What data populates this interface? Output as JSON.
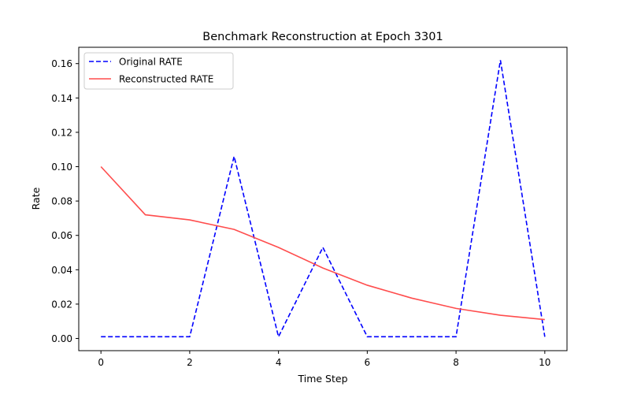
{
  "chart_data": {
    "type": "line",
    "title": "Benchmark Reconstruction at Epoch 3301",
    "xlabel": "Time Step",
    "ylabel": "Rate",
    "xlim": [
      -0.5,
      10.5
    ],
    "ylim": [
      -0.0071,
      0.1695
    ],
    "xticks": [
      0,
      2,
      4,
      6,
      8,
      10
    ],
    "xtick_labels": [
      "0",
      "2",
      "4",
      "6",
      "8",
      "10"
    ],
    "yticks": [
      0.0,
      0.02,
      0.04,
      0.06,
      0.08,
      0.1,
      0.12,
      0.14,
      0.16
    ],
    "ytick_labels": [
      "0.00",
      "0.02",
      "0.04",
      "0.06",
      "0.08",
      "0.10",
      "0.12",
      "0.14",
      "0.16"
    ],
    "grid": false,
    "legend_position": "upper-left",
    "x": [
      0,
      1,
      2,
      3,
      4,
      5,
      6,
      7,
      8,
      9,
      10
    ],
    "series": [
      {
        "name": "Original RATE",
        "color": "#0000ff",
        "style": "dashed",
        "values": [
          0.001,
          0.001,
          0.001,
          0.106,
          0.001,
          0.053,
          0.001,
          0.001,
          0.001,
          0.162,
          0.001
        ]
      },
      {
        "name": "Reconstructed RATE",
        "color": "#ff4d4d",
        "style": "solid",
        "values": [
          0.1,
          0.072,
          0.069,
          0.0635,
          0.053,
          0.041,
          0.031,
          0.0235,
          0.0175,
          0.0135,
          0.011
        ]
      }
    ]
  }
}
